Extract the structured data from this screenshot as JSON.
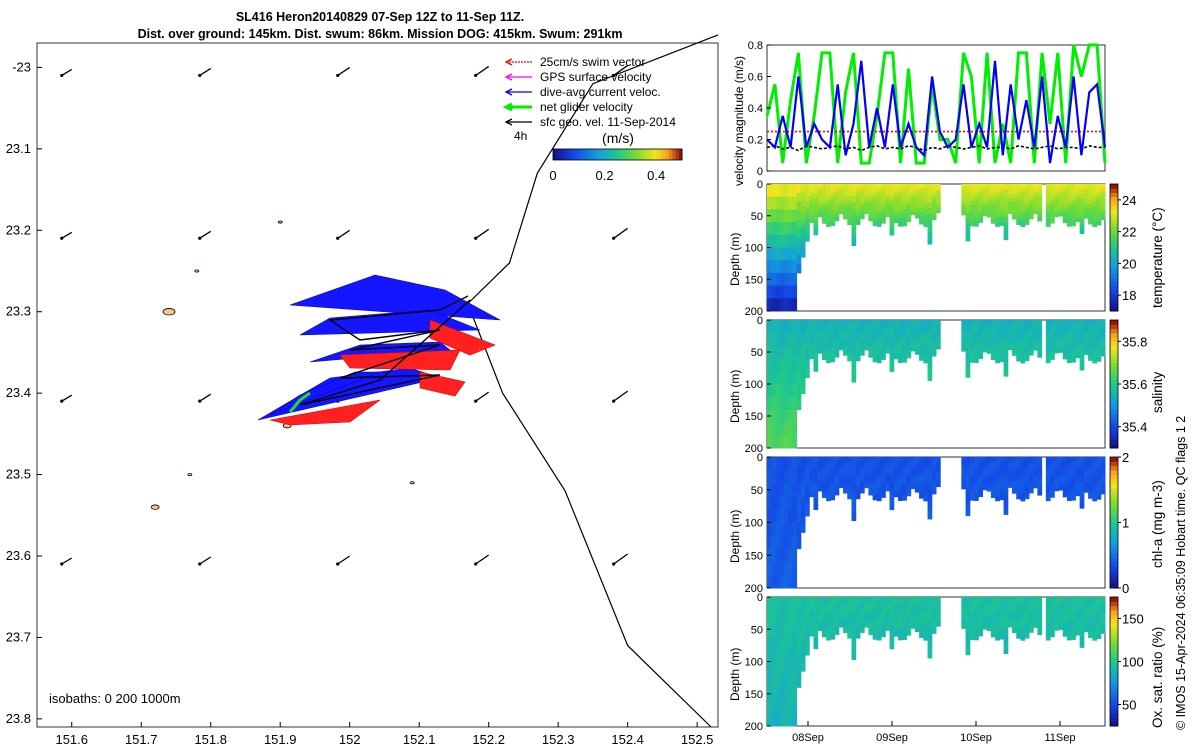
{
  "header": {
    "line1": "SL416 Heron20140829 07-Sep 12Z to 11-Sep 11Z.",
    "line2": "Dist. over ground: 145km. Dist. swum: 86km. Mission DOG: 415km. Swum: 291km"
  },
  "chart_data": [
    {
      "id": "map",
      "type": "scatter",
      "title": "Glider track map with velocity vectors",
      "xlim": [
        151.55,
        152.53
      ],
      "ylim": [
        -23.81,
        -22.97
      ],
      "x_ticks": [
        "151.6",
        "151.7",
        "151.8",
        "151.9",
        "152",
        "152.1",
        "152.2",
        "152.3",
        "152.4",
        "152.5"
      ],
      "y_ticks": [
        "-23",
        "23.1",
        "23.2",
        "23.3",
        "23.4",
        "23.5",
        "23.6",
        "23.7",
        "23.8"
      ],
      "legend": [
        {
          "label": "25cm/s swim vector",
          "color": "#ff0000"
        },
        {
          "label": "GPS surface velocity",
          "color": "#ff00ff"
        },
        {
          "label": "dive-avg current veloc.",
          "color": "#0000ff"
        },
        {
          "label": "net glider velocity",
          "color": "#00ee00"
        },
        {
          "label": "sfc geo. vel. 11-Sep-2014",
          "color": "#000000"
        }
      ],
      "legend_note": "4h",
      "colorbar": {
        "label": "(m/s)",
        "ticks": [
          "0",
          "0.2",
          "0.4"
        ],
        "range": [
          0,
          0.5
        ]
      },
      "isobaths_label": "isobaths: 0   200  1000m",
      "isobath_1000m": [
        [
          152.53,
          -22.96
        ],
        [
          152.35,
          -23.02
        ],
        [
          152.27,
          -23.13
        ],
        [
          152.23,
          -23.24
        ],
        [
          152.17,
          -23.29
        ],
        [
          152.22,
          -23.4
        ],
        [
          152.31,
          -23.52
        ],
        [
          152.4,
          -23.71
        ],
        [
          152.52,
          -23.81
        ]
      ],
      "shoals": [
        [
          151.74,
          -23.3
        ],
        [
          151.91,
          -23.44
        ],
        [
          151.72,
          -23.54
        ],
        [
          151.78,
          -23.25
        ],
        [
          152.09,
          -23.51
        ],
        [
          151.77,
          -23.5
        ],
        [
          151.9,
          -23.19
        ]
      ]
    },
    {
      "id": "velocity",
      "type": "line",
      "ylabel": "velocity magnitude (m/s)",
      "ylim": [
        0,
        0.8
      ],
      "y_ticks": [
        "0",
        "0.2",
        "0.4",
        "0.6",
        "0.8"
      ],
      "series": [
        {
          "name": "net glider velocity",
          "color": "#00ee00",
          "values": [
            0.35,
            0.55,
            0.05,
            0.45,
            0.75,
            0.05,
            0.35,
            0.75,
            0.75,
            0.05,
            0.5,
            0.75,
            0.05,
            0.05,
            0.35,
            0.75,
            0.75,
            0.05,
            0.65,
            0.05,
            0.05,
            0.55,
            0.2,
            0.2,
            0.05,
            0.75,
            0.6,
            0.05,
            0.75,
            0.05,
            0.3,
            0.05,
            0.75,
            0.75,
            0.05,
            0.75,
            0.3,
            0.75,
            0.05,
            0.8,
            0.6,
            0.8,
            0.8,
            0.05
          ]
        },
        {
          "name": "dive-avg current veloc.",
          "color": "#0000ff",
          "values": [
            0.2,
            0.15,
            0.35,
            0.15,
            0.6,
            0.15,
            0.3,
            0.2,
            0.15,
            0.55,
            0.1,
            0.3,
            0.7,
            0.15,
            0.4,
            0.15,
            0.55,
            0.15,
            0.3,
            0.15,
            0.1,
            0.6,
            0.25,
            0.15,
            0.2,
            0.55,
            0.15,
            0.3,
            0.15,
            0.7,
            0.1,
            0.55,
            0.2,
            0.45,
            0.15,
            0.6,
            0.05,
            0.35,
            0.15,
            0.6,
            0.1,
            0.5,
            0.55,
            0.15
          ]
        },
        {
          "name": "25cm/s swim vector",
          "color": "#ff0000",
          "values": [
            0.25,
            0.25,
            0.25,
            0.25,
            0.25,
            0.25,
            0.25,
            0.25,
            0.25,
            0.25,
            0.25,
            0.25,
            0.25,
            0.25,
            0.25,
            0.25,
            0.25,
            0.25,
            0.25,
            0.25,
            0.25,
            0.25,
            0.25,
            0.25,
            0.25,
            0.25,
            0.25,
            0.25,
            0.25,
            0.25,
            0.25,
            0.25,
            0.25,
            0.25,
            0.25,
            0.25,
            0.25,
            0.25,
            0.25,
            0.25,
            0.25,
            0.25,
            0.25,
            0.25
          ]
        },
        {
          "name": "sfc geo. vel.",
          "color": "#000000",
          "values": [
            0.15,
            0.16,
            0.14,
            0.15,
            0.13,
            0.16,
            0.15,
            0.14,
            0.15,
            0.16,
            0.14,
            0.15,
            0.13,
            0.15,
            0.16,
            0.14,
            0.15,
            0.14,
            0.16,
            0.15,
            0.13,
            0.15,
            0.14,
            0.16,
            0.15,
            0.14,
            0.15,
            0.16,
            0.14,
            0.15,
            0.15,
            0.14,
            0.16,
            0.15,
            0.14,
            0.15,
            0.16,
            0.14,
            0.15,
            0.15,
            0.14,
            0.16,
            0.15,
            0.15
          ]
        }
      ]
    },
    {
      "id": "temperature",
      "type": "heatmap",
      "ylabel": "Depth (m)",
      "colorbar_label": "temperature (°C)",
      "y_ticks": [
        "0",
        "50",
        "100",
        "150",
        "200"
      ],
      "cbar_ticks": [
        "18",
        "20",
        "22",
        "24"
      ],
      "cbar_range": [
        17,
        25
      ],
      "surface_value": 23.3,
      "deep_value": 17.5
    },
    {
      "id": "salinity",
      "type": "heatmap",
      "ylabel": "Depth (m)",
      "colorbar_label": "salinity",
      "y_ticks": [
        "0",
        "50",
        "100",
        "150",
        "200"
      ],
      "cbar_ticks": [
        "35.4",
        "35.6",
        "35.8"
      ],
      "cbar_range": [
        35.3,
        35.9
      ],
      "surface_value": 35.55,
      "deep_value": 35.65
    },
    {
      "id": "chla",
      "type": "heatmap",
      "ylabel": "Depth (m)",
      "colorbar_label": "chl-a (mg m-3)",
      "y_ticks": [
        "0",
        "50",
        "100",
        "150",
        "200"
      ],
      "cbar_ticks": [
        "0",
        "1",
        "2"
      ],
      "cbar_range": [
        0,
        2
      ],
      "surface_value": 0.35,
      "deep_value": 0.4
    },
    {
      "id": "oxygen",
      "type": "heatmap",
      "ylabel": "Depth (m)",
      "colorbar_label": "Ox. sat. ratio (%)",
      "y_ticks": [
        "0",
        "50",
        "100",
        "150",
        "200"
      ],
      "cbar_ticks": [
        "50",
        "100",
        "150"
      ],
      "cbar_range": [
        25,
        175
      ],
      "surface_value": 95,
      "deep_value": 88
    }
  ],
  "x_date_ticks": [
    "08Sep",
    "09Sep",
    "10Sep",
    "11Sep"
  ],
  "footer": "© IMOS 15-Apr-2024 06:35:09 Hobart time. QC flags 1  2"
}
